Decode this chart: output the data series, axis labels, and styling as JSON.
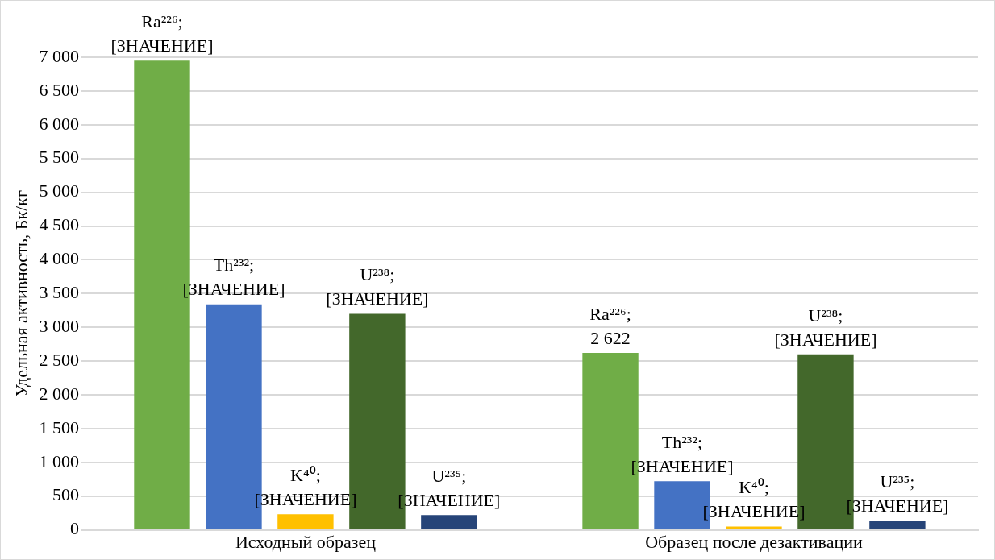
{
  "chart_data": {
    "type": "bar",
    "ylabel": "Удельная активность, Бк/кг",
    "categories": [
      "Исходный образец",
      "Образец после дезактивации"
    ],
    "series": [
      {
        "color": "#70ad47",
        "values": [
          6950,
          2622
        ],
        "value_labels": [
          "Ra²²⁶;\n[ЗНАЧЕНИЕ]",
          "Ra²²⁶;\n2 622"
        ]
      },
      {
        "color": "#4472c4",
        "values": [
          3340,
          720
        ],
        "value_labels": [
          "Th²³²;\n[ЗНАЧЕНИЕ]",
          "Th²³²;\n[ЗНАЧЕНИЕ]"
        ]
      },
      {
        "color": "#ffc000",
        "values": [
          230,
          50
        ],
        "value_labels": [
          "K⁴⁰;\n[ЗНАЧЕНИЕ]",
          "K⁴⁰;\n[ЗНАЧЕНИЕ]"
        ]
      },
      {
        "color": "#43682b",
        "values": [
          3200,
          2600
        ],
        "value_labels": [
          "U²³⁸;\n[ЗНАЧЕНИЕ]",
          "U²³⁸;\n[ЗНАЧЕНИЕ]"
        ]
      },
      {
        "color": "#264478",
        "values": [
          220,
          130
        ],
        "value_labels": [
          "U²³⁵;\n[ЗНАЧЕНИЕ]",
          "U²³⁵;\n[ЗНАЧЕНИЕ]"
        ]
      }
    ],
    "ylim": [
      0,
      7000
    ],
    "yticks": [
      0,
      500,
      {
        "value": 1000,
        "label": "1 000"
      },
      {
        "value": 1500,
        "label": "1 500"
      },
      {
        "value": 2000,
        "label": "2 000"
      },
      {
        "value": 2500,
        "label": "2 500"
      },
      {
        "value": 3000,
        "label": "3 000"
      },
      {
        "value": 3500,
        "label": "3 500"
      },
      {
        "value": 4000,
        "label": "4 000"
      },
      {
        "value": 4500,
        "label": "4 500"
      },
      {
        "value": 5000,
        "label": "5 000"
      },
      {
        "value": 5500,
        "label": "5 500"
      },
      {
        "value": 6000,
        "label": "6 000"
      },
      {
        "value": 6500,
        "label": "6 500"
      },
      {
        "value": 7000,
        "label": "7 000"
      }
    ],
    "grid": "y",
    "legend": false
  }
}
